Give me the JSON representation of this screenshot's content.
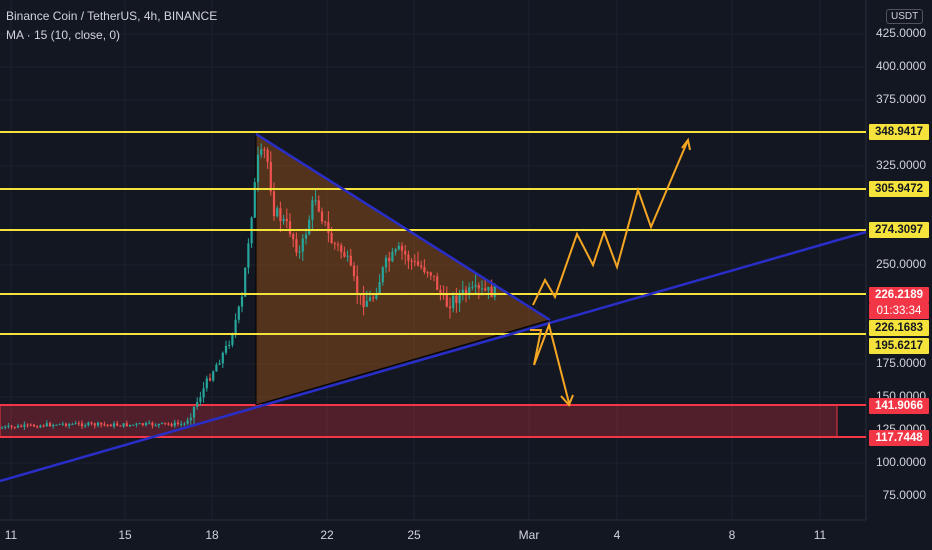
{
  "header": {
    "title": "Binance Coin / TetherUS, 4h, BINANCE",
    "indicator": "MA · 15 (10, close, 0)"
  },
  "currency_badge": "USDT",
  "y_axis": {
    "labels": [
      "425.0000",
      "400.0000",
      "375.0000",
      "325.0000",
      "250.0000",
      "175.0000",
      "150.0000",
      "125.0000",
      "100.0000",
      "75.0000"
    ]
  },
  "x_axis": {
    "labels": [
      "11",
      "15",
      "18",
      "22",
      "25",
      "Mar",
      "4",
      "8",
      "11"
    ]
  },
  "price_tags": {
    "level_348": "348.9417",
    "level_305": "305.9472",
    "level_274": "274.3097",
    "current_price": "226.2189",
    "countdown": "01:33:34",
    "level_226": "226.1683",
    "level_195": "195.6217",
    "zone_top": "141.9066",
    "zone_bottom": "117.7448"
  },
  "colors": {
    "background": "#131722",
    "level_line": "#f5e33b",
    "trendline": "#2a2ec8",
    "zone": "#f23645",
    "triangle_fill": "#8a4b1a",
    "projection": "#f5a623",
    "candle_up": "#26a69a",
    "candle_down": "#ef5350"
  }
}
